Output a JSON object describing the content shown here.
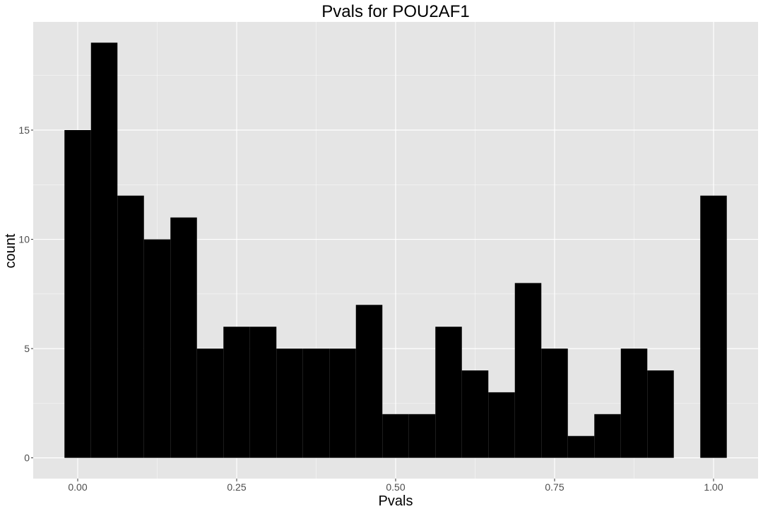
{
  "chart_data": {
    "type": "bar",
    "title": "Pvals for POU2AF1",
    "xlabel": "Pvals",
    "ylabel": "count",
    "bin_width": 0.04166667,
    "bin_centers": [
      0.0,
      0.0416667,
      0.0833333,
      0.125,
      0.1666667,
      0.2083333,
      0.25,
      0.2916667,
      0.3333333,
      0.375,
      0.4166667,
      0.4583333,
      0.5,
      0.5416667,
      0.5833333,
      0.625,
      0.6666667,
      0.7083333,
      0.75,
      0.7916667,
      0.8333333,
      0.875,
      0.9166667,
      0.9583333,
      1.0
    ],
    "values": [
      15,
      19,
      12,
      10,
      11,
      5,
      6,
      6,
      5,
      5,
      5,
      7,
      2,
      2,
      6,
      4,
      3,
      8,
      5,
      1,
      2,
      5,
      4,
      0,
      12
    ],
    "xlim": [
      -0.07,
      1.07
    ],
    "ylim": [
      -0.95,
      19.95
    ],
    "x_ticks": [
      0.0,
      0.25,
      0.5,
      0.75,
      1.0
    ],
    "x_tick_labels": [
      "0.00",
      "0.25",
      "0.50",
      "0.75",
      "1.00"
    ],
    "y_ticks": [
      0,
      5,
      10,
      15
    ],
    "y_tick_labels": [
      "0",
      "5",
      "10",
      "15"
    ],
    "grid": true,
    "colors": {
      "panel": "#e5e5e5",
      "bar": "#000000",
      "grid": "#ffffff"
    }
  }
}
